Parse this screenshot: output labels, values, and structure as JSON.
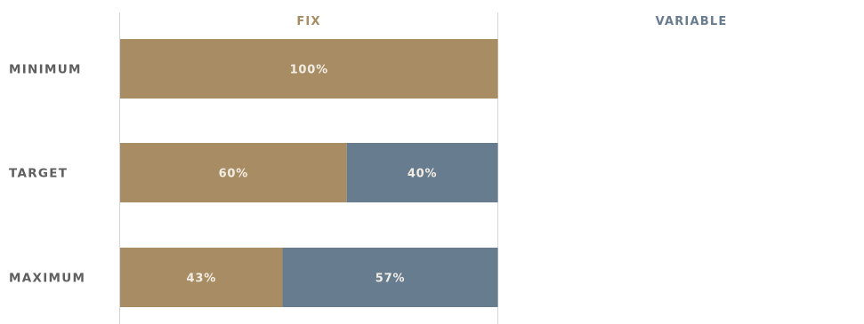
{
  "chart_data": {
    "type": "bar",
    "orientation": "horizontal",
    "stacked": true,
    "categories": [
      "MINIMUM",
      "TARGET",
      "MAXIMUM"
    ],
    "series": [
      {
        "name": "FIX",
        "values": [
          100,
          60,
          43
        ],
        "labels": [
          "100%",
          "60%",
          "43%"
        ],
        "color": "#a88c63"
      },
      {
        "name": "VARIABLE",
        "values": [
          0,
          40,
          57
        ],
        "labels": [
          "",
          "40%",
          "57%"
        ],
        "color": "#677c8f"
      }
    ],
    "legend": "top column headers",
    "header_colors": {
      "FIX": "#a88c63",
      "VARIABLE": "#677c8f"
    },
    "grid": false
  }
}
